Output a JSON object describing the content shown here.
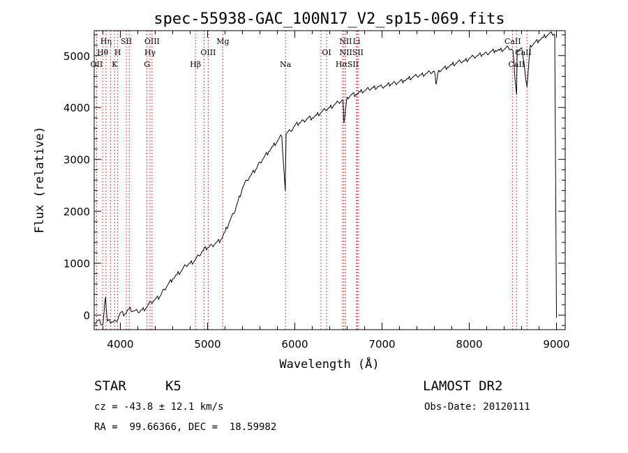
{
  "chart_data": {
    "type": "line",
    "title": "spec-55938-GAC_100N17_V2_sp15-069.fits",
    "xlabel": "Wavelength (Å)",
    "ylabel": "Flux (relative)",
    "xlim": [
      3700,
      9100
    ],
    "ylim": [
      -280,
      5480
    ],
    "x_ticks": [
      4000,
      5000,
      6000,
      7000,
      8000,
      9000
    ],
    "y_ticks": [
      0,
      1000,
      2000,
      3000,
      4000,
      5000
    ],
    "grid": false,
    "series": [
      {
        "x": [
          3700,
          3750,
          3800,
          3830,
          3850,
          3900,
          3950,
          4000,
          4050,
          4100,
          4150,
          4200,
          4250,
          4300,
          4350,
          4400,
          4450,
          4500,
          4550,
          4600,
          4650,
          4700,
          4750,
          4800,
          4850,
          4900,
          4950,
          5000,
          5050,
          5100,
          5150,
          5200,
          5250,
          5300,
          5350,
          5400,
          5450,
          5500,
          5550,
          5600,
          5650,
          5700,
          5750,
          5800,
          5850,
          5890,
          5900,
          5950,
          6000,
          6050,
          6100,
          6150,
          6200,
          6250,
          6300,
          6350,
          6400,
          6450,
          6500,
          6550,
          6563,
          6600,
          6650,
          6700,
          6750,
          6800,
          6850,
          6900,
          6950,
          7000,
          7050,
          7100,
          7150,
          7200,
          7250,
          7300,
          7350,
          7400,
          7450,
          7500,
          7550,
          7600,
          7620,
          7650,
          7700,
          7750,
          7800,
          7850,
          7900,
          7950,
          8000,
          8050,
          8100,
          8150,
          8200,
          8250,
          8300,
          8350,
          8400,
          8450,
          8500,
          8542,
          8550,
          8600,
          8662,
          8700,
          8750,
          8800,
          8850,
          8900,
          8950,
          8980,
          9000
        ],
        "values": [
          -150,
          -100,
          -180,
          350,
          -120,
          -130,
          -120,
          50,
          20,
          120,
          80,
          60,
          100,
          150,
          250,
          300,
          350,
          500,
          600,
          700,
          780,
          850,
          950,
          1000,
          1050,
          1150,
          1250,
          1300,
          1350,
          1400,
          1450,
          1600,
          1800,
          1950,
          2200,
          2450,
          2600,
          2700,
          2800,
          2950,
          3050,
          3150,
          3250,
          3350,
          3450,
          2400,
          3500,
          3550,
          3650,
          3700,
          3750,
          3800,
          3800,
          3850,
          3900,
          3950,
          4000,
          4050,
          4100,
          4150,
          3700,
          4200,
          4250,
          4250,
          4300,
          4320,
          4350,
          4380,
          4400,
          4400,
          4420,
          4450,
          4480,
          4500,
          4520,
          4550,
          4580,
          4600,
          4630,
          4650,
          4680,
          4700,
          4450,
          4720,
          4750,
          4780,
          4820,
          4850,
          4880,
          4900,
          4950,
          4980,
          5000,
          5020,
          5050,
          5080,
          5100,
          5100,
          5120,
          5150,
          5100,
          4250,
          5100,
          5150,
          4400,
          5200,
          5250,
          5300,
          5350,
          5400,
          5420,
          5400,
          -50
        ]
      }
    ],
    "line_labels": [
      {
        "text": "Hη",
        "x": 3835,
        "row": 0
      },
      {
        "text": "Hθ",
        "x": 3797,
        "row": 1
      },
      {
        "text": "OII",
        "x": 3727,
        "row": 2
      },
      {
        "text": "SII",
        "x": 4069,
        "row": 0
      },
      {
        "text": "H",
        "x": 3969,
        "row": 1
      },
      {
        "text": "K",
        "x": 3934,
        "row": 2
      },
      {
        "text": "OIII",
        "x": 4363,
        "row": 0
      },
      {
        "text": "Hγ",
        "x": 4340,
        "row": 1
      },
      {
        "text": "G",
        "x": 4305,
        "row": 2
      },
      {
        "text": "Mg",
        "x": 5175,
        "row": 0
      },
      {
        "text": "OIII",
        "x": 5007,
        "row": 1
      },
      {
        "text": "Hβ",
        "x": 4861,
        "row": 2
      },
      {
        "text": "Na",
        "x": 5893,
        "row": 2
      },
      {
        "text": "NII",
        "x": 6583,
        "row": 0
      },
      {
        "text": "Li",
        "x": 6708,
        "row": 0
      },
      {
        "text": "OI",
        "x": 6364,
        "row": 1
      },
      {
        "text": "NIISII",
        "x": 6650,
        "row": 1
      },
      {
        "text": "HαSII",
        "x": 6600,
        "row": 2
      },
      {
        "text": "CaII",
        "x": 8498,
        "row": 0
      },
      {
        "text": "CaII",
        "x": 8620,
        "row": 1
      },
      {
        "text": "CaII",
        "x": 8542,
        "row": 2
      }
    ],
    "line_markers": [
      3727,
      3797,
      3835,
      3889,
      3934,
      3969,
      4069,
      4102,
      4305,
      4340,
      4363,
      4861,
      4959,
      5007,
      5175,
      5893,
      6300,
      6364,
      6548,
      6563,
      6583,
      6708,
      6716,
      6731,
      8498,
      8542,
      8662
    ],
    "colors": {
      "line": "#000000",
      "marker": "#cc0000",
      "axis": "#000000"
    }
  },
  "info": {
    "class_label": "STAR",
    "subclass": "K5",
    "survey": "LAMOST DR2",
    "cz": "cz = -43.8 ± 12.1 km/s",
    "obs_date": "Obs-Date: 20120111",
    "coords": "RA =  99.66366, DEC =  18.59982"
  }
}
